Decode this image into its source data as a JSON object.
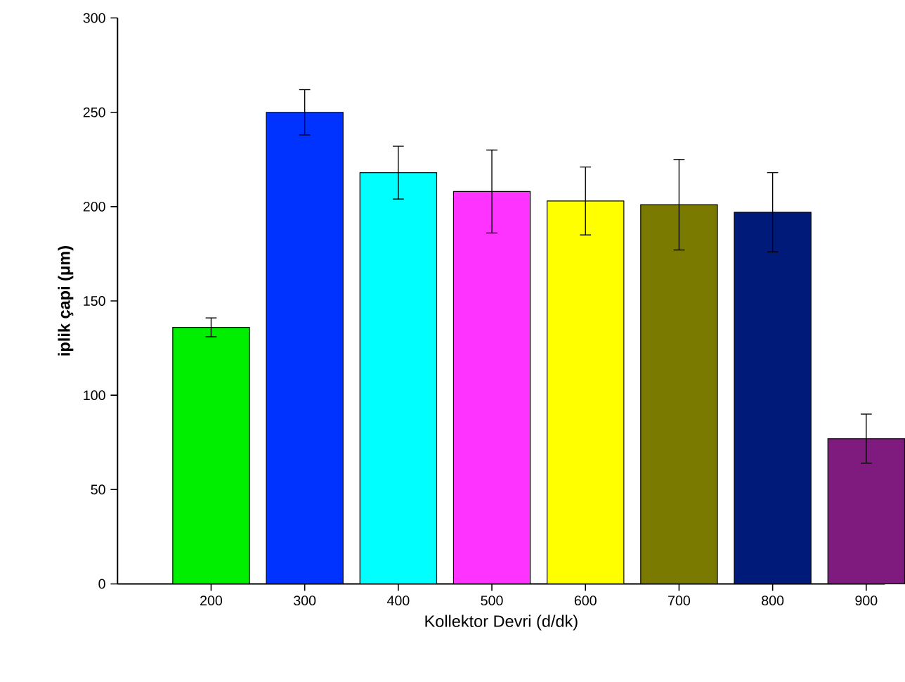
{
  "chart_data": {
    "type": "bar",
    "xlabel": "Kollektor Devri (d/dk)",
    "ylabel": "iplik çapi (μm)",
    "categories": [
      "200",
      "300",
      "400",
      "500",
      "600",
      "700",
      "800",
      "900"
    ],
    "values": [
      136,
      250,
      218,
      208,
      203,
      201,
      197,
      77
    ],
    "errors": [
      5,
      12,
      14,
      22,
      18,
      24,
      21,
      13
    ],
    "colors": [
      "#00ee00",
      "#0033ff",
      "#00ffff",
      "#ff33ff",
      "#ffff00",
      "#7a7a00",
      "#001a7a",
      "#7f1a7f"
    ],
    "ylim": [
      0,
      300
    ],
    "yticks": [
      0,
      50,
      100,
      150,
      200,
      250,
      300
    ],
    "grid": false
  }
}
